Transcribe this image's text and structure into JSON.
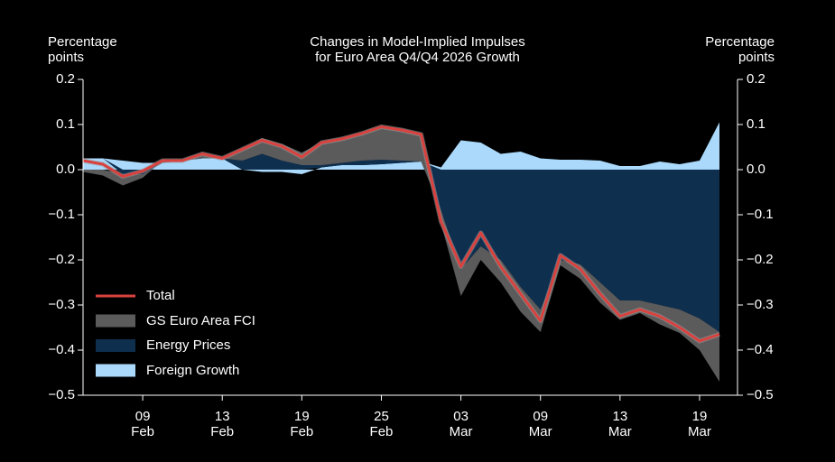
{
  "chart_data": {
    "type": "area",
    "title": "Changes in Model-Implied Impulses\nfor Euro Area Q4/Q4 2026 Growth",
    "y_label": "Percentage\npoints",
    "y2_label": "Percentage\npoints",
    "categories": [
      null,
      null,
      null,
      "09\nFeb",
      null,
      null,
      null,
      "13\nFeb",
      null,
      null,
      null,
      "19\nFeb",
      null,
      null,
      null,
      "25\nFeb",
      null,
      null,
      null,
      "03\nMar",
      null,
      null,
      null,
      "09\nMar",
      null,
      null,
      null,
      "13\nMar",
      null,
      null,
      null,
      "19\nMar",
      null
    ],
    "series": [
      {
        "name": "Total",
        "type": "line",
        "color": "#d9423f",
        "values": [
          0.02,
          0.012,
          -0.015,
          -0.003,
          0.02,
          0.02,
          0.035,
          0.025,
          0.045,
          0.065,
          0.052,
          0.028,
          0.06,
          0.068,
          0.08,
          0.095,
          0.088,
          0.078,
          -0.115,
          -0.215,
          -0.14,
          -0.215,
          -0.275,
          -0.335,
          -0.19,
          -0.22,
          -0.275,
          -0.325,
          -0.31,
          -0.325,
          -0.35,
          -0.38,
          -0.365
        ]
      },
      {
        "name": "GS Euro Area FCI",
        "type": "area",
        "color": "#5b5b5b",
        "values": [
          -0.005,
          -0.013,
          -0.025,
          -0.008,
          0.005,
          0,
          0.01,
          0,
          0.025,
          0.035,
          0.037,
          0.028,
          0.05,
          0.053,
          0.06,
          0.073,
          0.068,
          0.06,
          -0.03,
          -0.06,
          -0.03,
          -0.05,
          -0.055,
          -0.05,
          -0.012,
          -0.032,
          -0.045,
          -0.043,
          -0.028,
          -0.043,
          -0.052,
          -0.07,
          -0.11
        ]
      },
      {
        "name": "Energy Prices",
        "type": "area",
        "color": "#0f2f4f",
        "values": [
          0,
          0,
          -0.01,
          -0.01,
          0,
          0,
          0,
          0,
          0.02,
          0.035,
          0.02,
          0.01,
          0.005,
          0.005,
          0.01,
          0.01,
          0.005,
          0,
          -0.09,
          -0.22,
          -0.17,
          -0.2,
          -0.26,
          -0.31,
          -0.2,
          -0.21,
          -0.25,
          -0.29,
          -0.29,
          -0.3,
          -0.31,
          -0.33,
          -0.36
        ]
      },
      {
        "name": "Foreign Growth",
        "type": "area",
        "color": "#aad9fb",
        "values": [
          0.025,
          0.025,
          0.02,
          0.015,
          0.015,
          0.02,
          0.025,
          0.025,
          0,
          -0.005,
          -0.005,
          -0.01,
          0.005,
          0.01,
          0.01,
          0.012,
          0.015,
          0.018,
          0.005,
          0.065,
          0.06,
          0.035,
          0.04,
          0.025,
          0.022,
          0.022,
          0.02,
          0.008,
          0.008,
          0.018,
          0.012,
          0.02,
          0.105
        ]
      }
    ],
    "ylim": [
      -0.5,
      0.2
    ],
    "yticks": [
      {
        "value": -0.5,
        "label": "−0.5"
      },
      {
        "value": -0.4,
        "label": "−0.4"
      },
      {
        "value": -0.3,
        "label": "−0.3"
      },
      {
        "value": -0.2,
        "label": "−0.2"
      },
      {
        "value": -0.1,
        "label": "−0.1"
      },
      {
        "value": 0,
        "label": "0.0"
      },
      0.1,
      0.2
    ],
    "y2lim": [
      -0.5,
      0.2
    ],
    "y2ticks": [
      {
        "value": -0.5,
        "label": "−0.5"
      },
      {
        "value": -0.4,
        "label": "−0.4"
      },
      {
        "value": -0.3,
        "label": "−0.3"
      },
      {
        "value": -0.2,
        "label": "−0.2"
      },
      {
        "value": -0.1,
        "label": "−0.1"
      },
      {
        "value": 0,
        "label": "0.0"
      },
      0.1,
      0.2
    ],
    "legend": "lower left",
    "grid": false
  }
}
